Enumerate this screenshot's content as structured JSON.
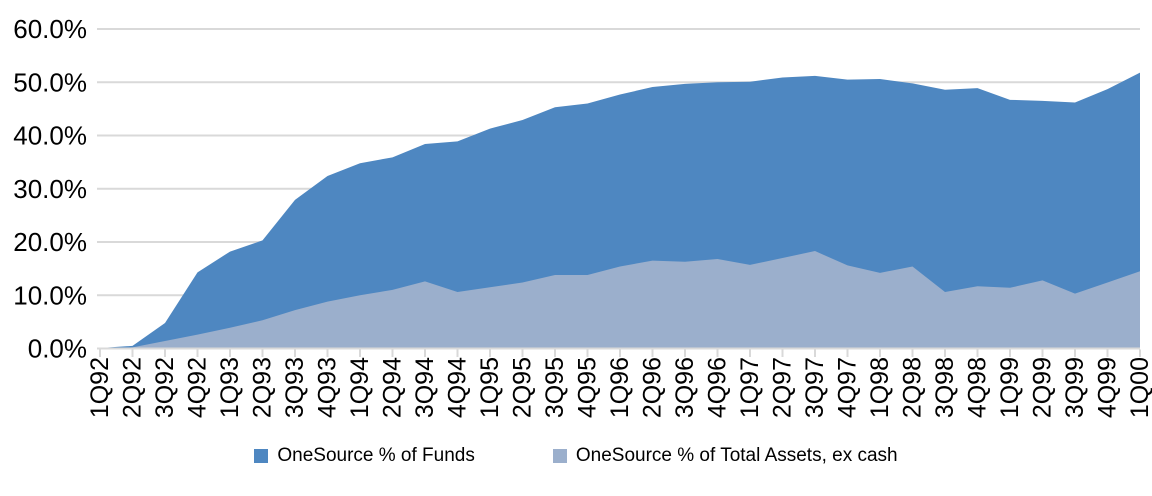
{
  "chart_data": {
    "type": "area",
    "mode": "overlapping",
    "title": "",
    "categories": [
      "1Q92",
      "2Q92",
      "3Q92",
      "4Q92",
      "1Q93",
      "2Q93",
      "3Q93",
      "4Q93",
      "1Q94",
      "2Q94",
      "3Q94",
      "4Q94",
      "1Q95",
      "2Q95",
      "3Q95",
      "4Q95",
      "1Q96",
      "2Q96",
      "3Q96",
      "4Q96",
      "1Q97",
      "2Q97",
      "3Q97",
      "4Q97",
      "1Q98",
      "2Q98",
      "3Q98",
      "4Q98",
      "1Q99",
      "2Q99",
      "3Q99",
      "4Q99",
      "1Q00"
    ],
    "series": [
      {
        "name": "OneSource % of Funds",
        "color": "#4E87C1",
        "values": [
          0.1,
          0.5,
          4.8,
          14.3,
          18.2,
          20.3,
          27.9,
          32.4,
          34.8,
          35.9,
          38.4,
          38.9,
          41.3,
          42.9,
          45.3,
          46.0,
          47.7,
          49.1,
          49.7,
          50.0,
          50.1,
          50.9,
          51.2,
          50.5,
          50.6,
          49.8,
          48.6,
          48.9,
          46.7,
          46.5,
          46.2,
          48.7,
          51.8
        ]
      },
      {
        "name": "OneSource % of Total Assets, ex cash",
        "color": "#9BAFCC",
        "values": [
          0.0,
          0.2,
          1.4,
          2.6,
          3.9,
          5.3,
          7.2,
          8.8,
          10.0,
          11.0,
          12.6,
          10.6,
          11.5,
          12.4,
          13.8,
          13.8,
          15.4,
          16.5,
          16.3,
          16.8,
          15.7,
          17.0,
          18.3,
          15.6,
          14.2,
          15.4,
          10.6,
          11.7,
          11.4,
          12.8,
          10.3,
          12.4,
          14.5
        ]
      }
    ],
    "y_axis": {
      "min": 0,
      "max": 60,
      "tick_step": 10,
      "tick_labels": [
        "0.0%",
        "10.0%",
        "20.0%",
        "30.0%",
        "40.0%",
        "50.0%",
        "60.0%"
      ]
    },
    "x_axis": {
      "label_rotation_degrees": 90
    },
    "grid": true,
    "legend_position": "bottom",
    "colors": {
      "gridline": "#D9D9D9",
      "axis": "#D9D9D9",
      "text": "#000000",
      "background": "#FFFFFF"
    }
  }
}
